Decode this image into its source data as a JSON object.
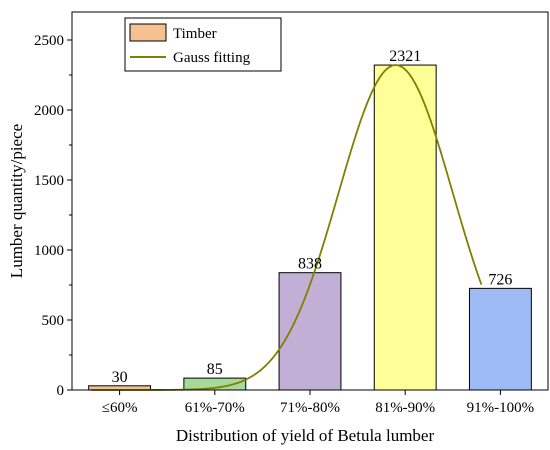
{
  "chart_data": {
    "type": "bar",
    "xlabel": "Distribution of yield of Betula lumber",
    "ylabel": "Lumber quantity/piece",
    "categories": [
      "≤60%",
      "61%-70%",
      "71%-80%",
      "81%-90%",
      "91%-100%"
    ],
    "series": [
      {
        "name": "Timber",
        "values": [
          30,
          85,
          838,
          2321,
          726
        ],
        "colors": [
          "#f5c193",
          "#a6d99a",
          "#c2afd6",
          "#ffff99",
          "#9fbbf5"
        ]
      }
    ],
    "data_labels": [
      "30",
      "85",
      "838",
      "2321",
      "726"
    ],
    "fit": {
      "name": "Gauss fitting",
      "color": "#808000",
      "center": 3.9,
      "sigma": 0.6,
      "amplitude": 2321
    },
    "y_ticks": [
      "0",
      "500",
      "1000",
      "1500",
      "2000",
      "2500"
    ],
    "ylim": [
      0,
      2700
    ],
    "xlim": [
      0.5,
      5.5
    ],
    "grid": false,
    "legend_position": "top-left"
  }
}
